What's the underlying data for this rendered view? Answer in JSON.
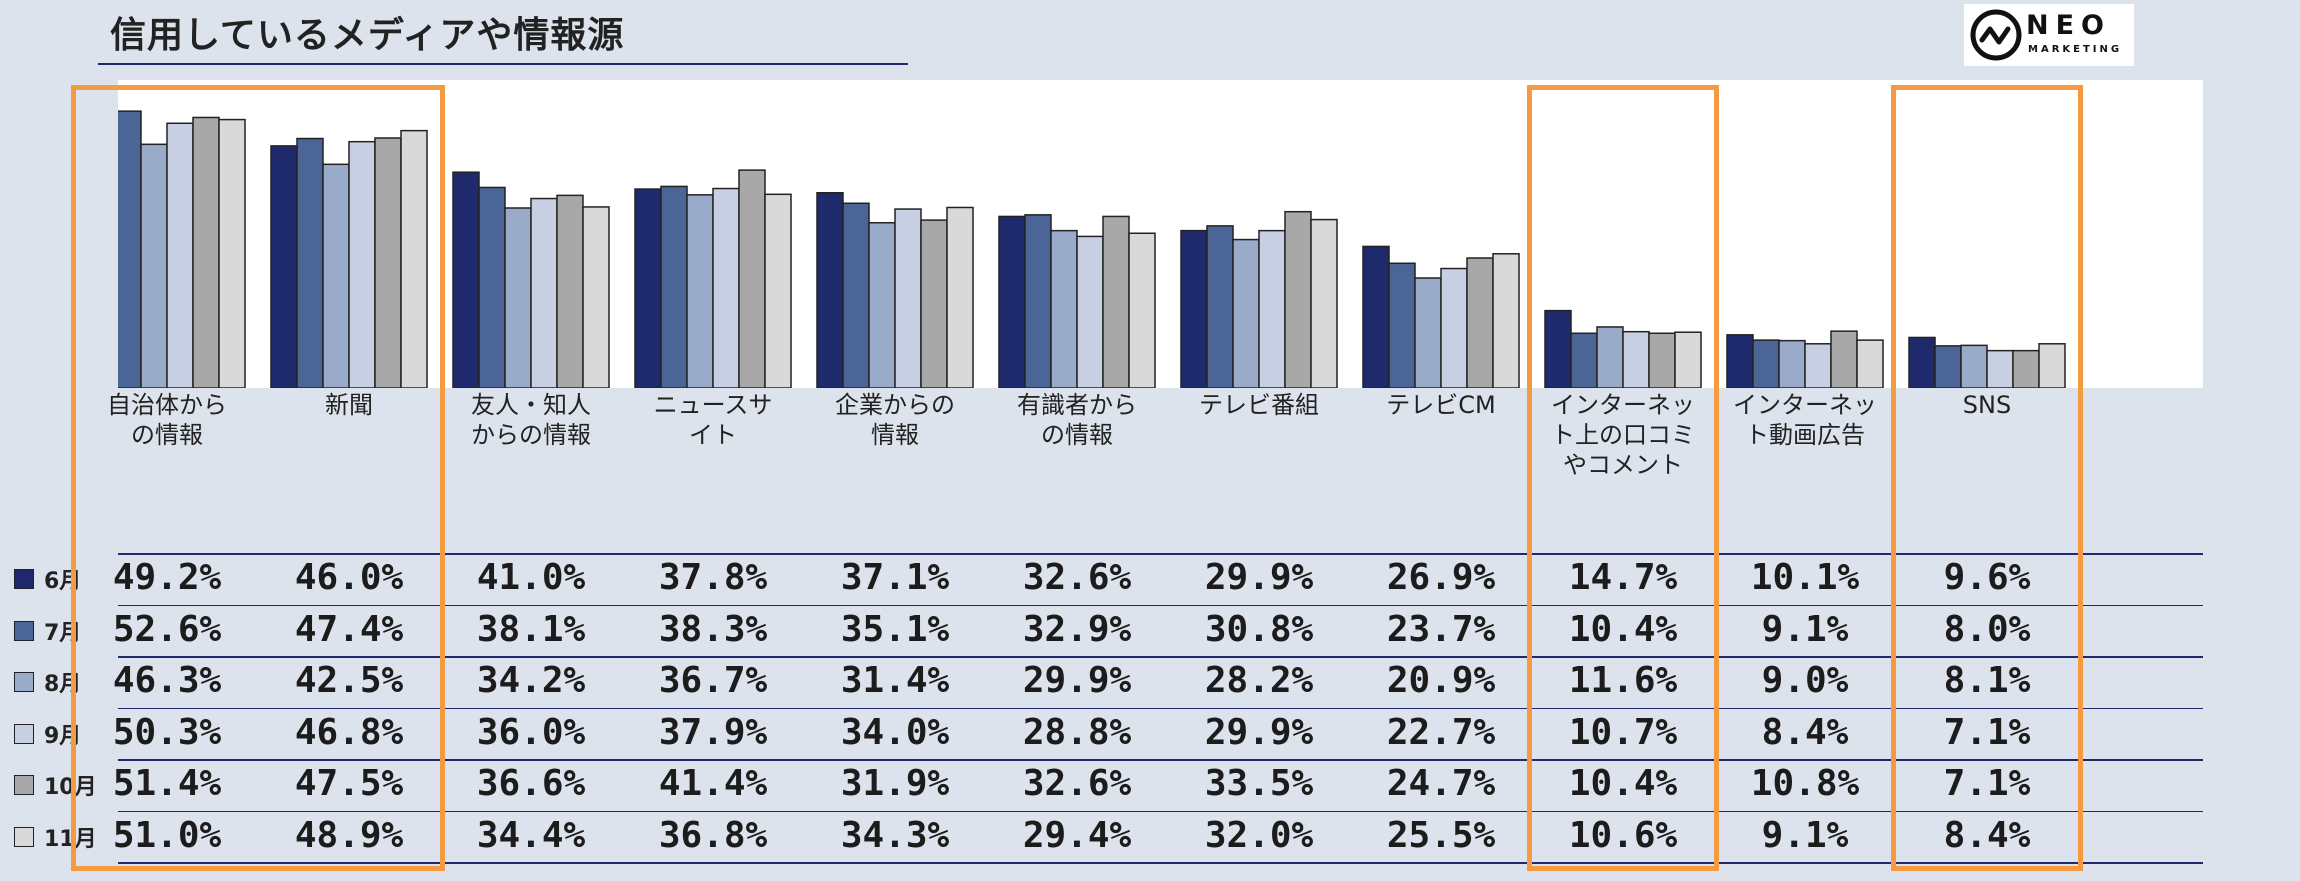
{
  "header": {
    "title": "信用しているメディアや情報源",
    "logo_text": "NEO",
    "logo_sub": "MARKETING"
  },
  "chart_data": {
    "type": "bar",
    "categories": [
      "自治体から\nの情報",
      "新聞",
      "友人・知人\nからの情報",
      "ニュースサ\nイト",
      "企業からの\n情報",
      "有識者から\nの情報",
      "テレビ番組",
      "テレビCM",
      "インターネッ\nト上の口コミ\nやコメント",
      "インターネッ\nト動画広告",
      "SNS"
    ],
    "series": [
      {
        "name": "6月",
        "color": "#1f2a6d",
        "values": [
          49.2,
          46.0,
          41.0,
          37.8,
          37.1,
          32.6,
          29.9,
          26.9,
          14.7,
          10.1,
          9.6
        ]
      },
      {
        "name": "7月",
        "color": "#4a6596",
        "values": [
          52.6,
          47.4,
          38.1,
          38.3,
          35.1,
          32.9,
          30.8,
          23.7,
          10.4,
          9.1,
          8.0
        ]
      },
      {
        "name": "8月",
        "color": "#9aaac9",
        "values": [
          46.3,
          42.5,
          34.2,
          36.7,
          31.4,
          29.9,
          28.2,
          20.9,
          11.6,
          9.0,
          8.1
        ]
      },
      {
        "name": "9月",
        "color": "#c6d0e2",
        "values": [
          50.3,
          46.8,
          36.0,
          37.9,
          34.0,
          28.8,
          29.9,
          22.7,
          10.7,
          8.4,
          7.1
        ]
      },
      {
        "name": "10月",
        "color": "#a8a8a8",
        "values": [
          51.4,
          47.5,
          36.6,
          41.4,
          31.9,
          32.6,
          33.5,
          24.7,
          10.4,
          10.8,
          7.1
        ]
      },
      {
        "name": "11月",
        "color": "#d9d9d9",
        "values": [
          51.0,
          48.9,
          34.4,
          36.8,
          34.3,
          29.4,
          32.0,
          25.5,
          10.6,
          9.1,
          8.4
        ]
      }
    ],
    "table": {
      "rows": [
        [
          "49.2%",
          "46.0%",
          "41.0%",
          "37.8%",
          "37.1%",
          "32.6%",
          "29.9%",
          "26.9%",
          "14.7%",
          "10.1%",
          "9.6%"
        ],
        [
          "52.6%",
          "47.4%",
          "38.1%",
          "38.3%",
          "35.1%",
          "32.9%",
          "30.8%",
          "23.7%",
          "10.4%",
          "9.1%",
          "8.0%"
        ],
        [
          "46.3%",
          "42.5%",
          "34.2%",
          "36.7%",
          "31.4%",
          "29.9%",
          "28.2%",
          "20.9%",
          "11.6%",
          "9.0%",
          "8.1%"
        ],
        [
          "50.3%",
          "46.8%",
          "36.0%",
          "37.9%",
          "34.0%",
          "28.8%",
          "29.9%",
          "22.7%",
          "10.7%",
          "8.4%",
          "7.1%"
        ],
        [
          "51.4%",
          "47.5%",
          "36.6%",
          "41.4%",
          "31.9%",
          "32.6%",
          "33.5%",
          "24.7%",
          "10.4%",
          "10.8%",
          "7.1%"
        ],
        [
          "51.0%",
          "48.9%",
          "34.4%",
          "36.8%",
          "34.3%",
          "29.4%",
          "32.0%",
          "25.5%",
          "10.6%",
          "9.1%",
          "8.4%"
        ]
      ]
    },
    "ylim": [
      0,
      55
    ],
    "highlighted_categories": [
      "自治体から\nの情報",
      "新聞",
      "インターネッ\nト上の口コミ\nやコメント",
      "SNS"
    ],
    "highlight_color": "#f39a43"
  }
}
